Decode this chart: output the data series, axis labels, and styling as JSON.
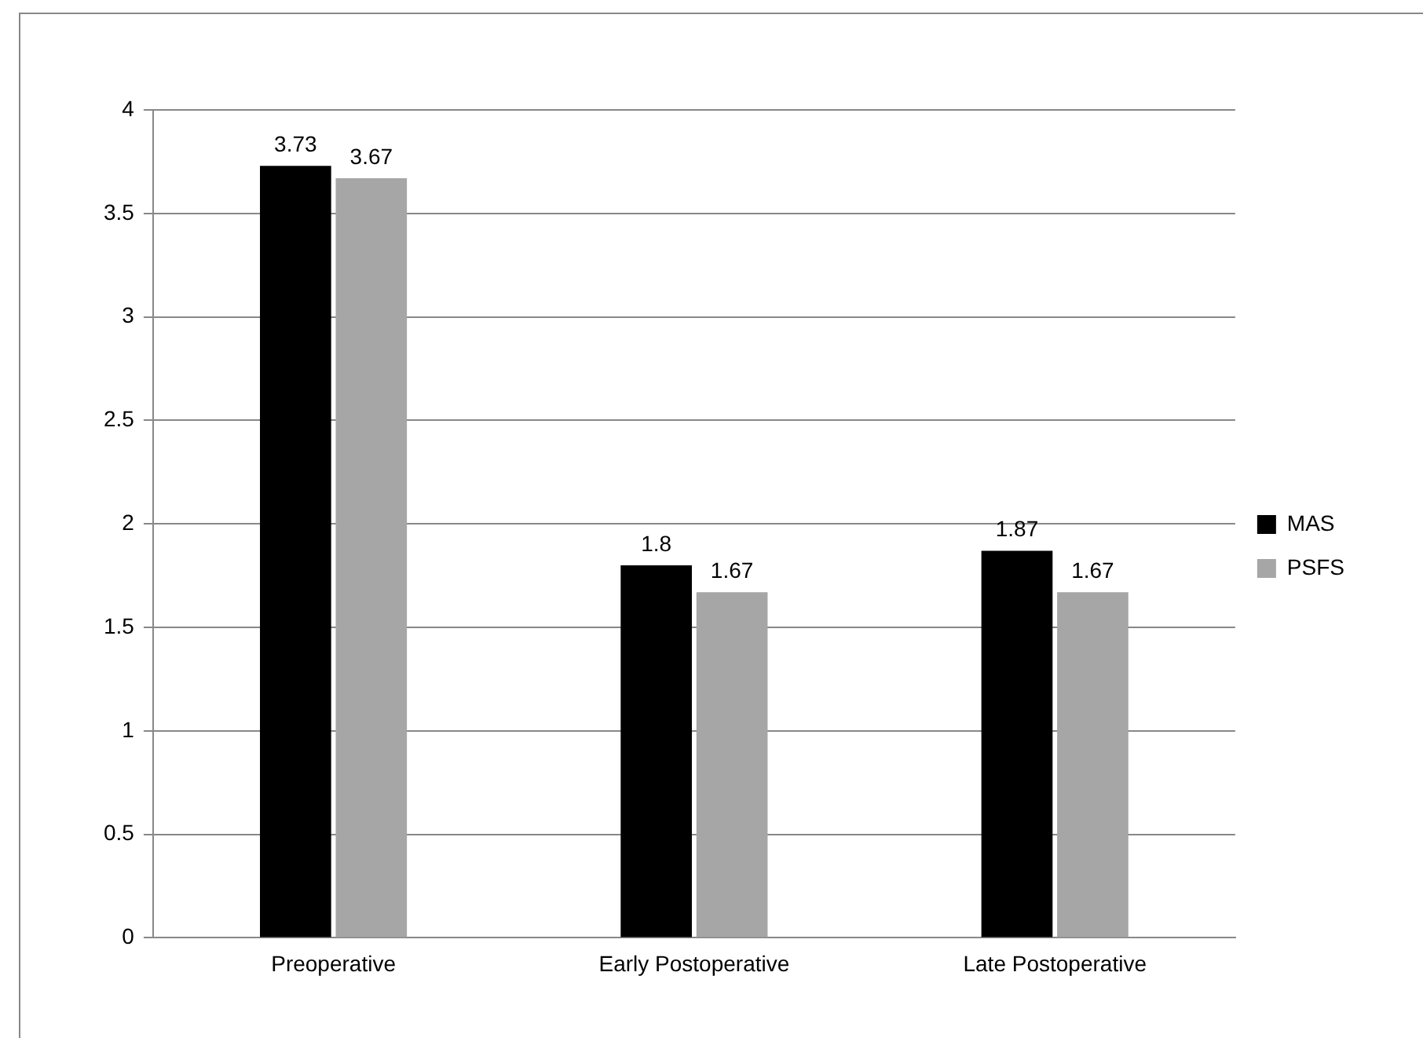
{
  "chart_data": {
    "type": "bar",
    "categories": [
      "Preoperative",
      "Early Postoperative",
      "Late Postoperative"
    ],
    "series": [
      {
        "name": "MAS",
        "color": "#000000",
        "values": [
          3.73,
          1.8,
          1.87
        ]
      },
      {
        "name": "PSFS",
        "color": "#a6a6a6",
        "values": [
          3.67,
          1.67,
          1.67
        ]
      }
    ],
    "ylim": [
      0,
      4
    ],
    "yticks": [
      0,
      0.5,
      1,
      1.5,
      2,
      2.5,
      3,
      3.5,
      4
    ],
    "grid": "y",
    "legend": "right",
    "data_labels": true
  }
}
